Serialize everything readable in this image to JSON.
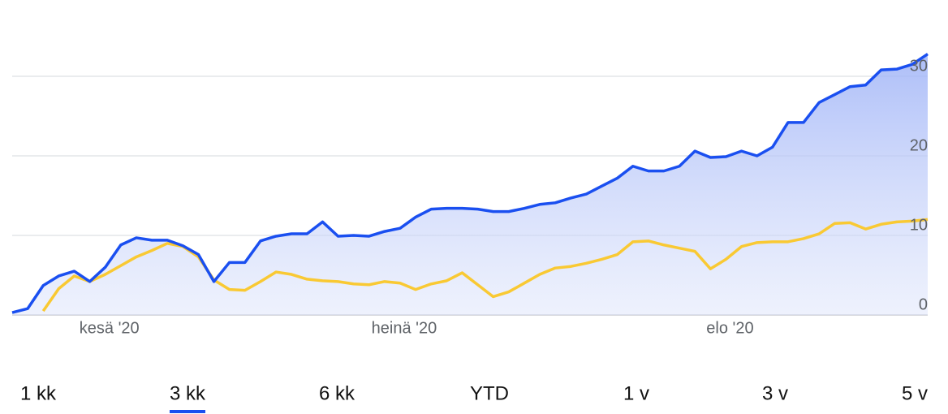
{
  "chart_data": {
    "type": "line",
    "categories": [
      null,
      null,
      null,
      null,
      null,
      null,
      "kesä '20",
      null,
      null,
      null,
      null,
      null,
      null,
      null,
      null,
      null,
      null,
      null,
      null,
      null,
      null,
      null,
      null,
      null,
      null,
      "heinä '20",
      null,
      null,
      null,
      null,
      null,
      null,
      null,
      null,
      null,
      null,
      null,
      null,
      null,
      null,
      null,
      null,
      null,
      null,
      null,
      null,
      "elo '20",
      null,
      null,
      null,
      null,
      null,
      null,
      null,
      null,
      null,
      null,
      null,
      null,
      null
    ],
    "series": [
      {
        "color": "#1a4ff0",
        "values": [
          0.3,
          0.8,
          3.7,
          4.9,
          5.5,
          4.2,
          6.0,
          8.8,
          9.7,
          9.4,
          9.4,
          8.7,
          7.6,
          4.2,
          6.6,
          6.6,
          9.3,
          9.9,
          10.2,
          10.2,
          11.7,
          9.9,
          10.0,
          9.9,
          10.5,
          10.9,
          12.3,
          13.3,
          13.4,
          13.4,
          13.3,
          13.0,
          13.0,
          13.4,
          13.9,
          14.1,
          14.7,
          15.2,
          16.2,
          17.2,
          18.7,
          18.1,
          18.1,
          18.7,
          20.6,
          19.8,
          19.9,
          20.6,
          20.0,
          21.1,
          24.2,
          24.2,
          26.7,
          27.7,
          28.7,
          28.9,
          30.8,
          30.9,
          31.5,
          32.8
        ]
      },
      {
        "color": "#f9c933",
        "values": [
          null,
          null,
          0.5,
          3.3,
          4.9,
          4.2,
          5.1,
          6.2,
          7.3,
          8.1,
          9.0,
          8.6,
          7.3,
          4.4,
          3.2,
          3.1,
          4.2,
          5.4,
          5.1,
          4.5,
          4.3,
          4.2,
          3.9,
          3.8,
          4.2,
          4.0,
          3.2,
          3.9,
          4.3,
          5.3,
          3.8,
          2.3,
          2.9,
          4.0,
          5.1,
          5.9,
          6.1,
          6.5,
          7.0,
          7.6,
          9.2,
          9.3,
          8.8,
          8.4,
          8.0,
          5.8,
          7.0,
          8.6,
          9.1,
          9.2,
          9.2,
          9.6,
          10.2,
          11.5,
          11.6,
          10.8,
          11.4,
          11.7,
          11.8,
          12.0
        ]
      }
    ],
    "ylim": [
      0,
      33
    ],
    "yticks": [
      0,
      10,
      20,
      30
    ],
    "grid": true,
    "area_fill": true
  },
  "range_buttons": {
    "options": [
      "1 kk",
      "3 kk",
      "6 kk",
      "YTD",
      "1 v",
      "3 v",
      "5 v"
    ],
    "selected": 1
  }
}
